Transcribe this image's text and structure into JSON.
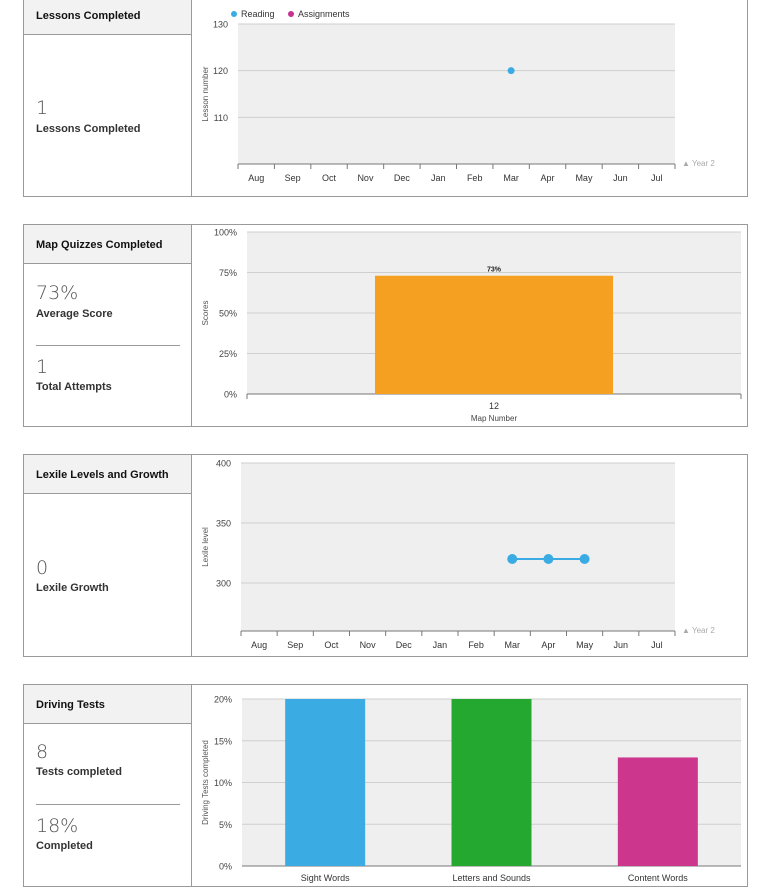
{
  "panels": {
    "lessons": {
      "title": "Lessons Completed",
      "stat_value": "1",
      "stat_label": "Lessons Completed"
    },
    "map_quizzes": {
      "title": "Map Quizzes Completed",
      "avg_value": "73%",
      "avg_label": "Average Score",
      "attempts_value": "1",
      "attempts_label": "Total Attempts"
    },
    "lexile": {
      "title": "Lexile Levels and Growth",
      "stat_value": "0",
      "stat_label": "Lexile Growth"
    },
    "driving": {
      "title": "Driving Tests",
      "tests_value": "8",
      "tests_label": "Tests completed",
      "completed_value": "18%",
      "completed_label": "Completed"
    }
  },
  "colors": {
    "reading": "#3aace3",
    "assignments": "#c7318f",
    "orange": "#f5a020",
    "green": "#25a830",
    "magenta": "#cc368c",
    "plot_bg": "#efefef",
    "grid": "#cfcfcf"
  },
  "chart_data": [
    {
      "type": "scatter",
      "legend": [
        "Reading",
        "Assignments"
      ],
      "ylabel": "Lesson number",
      "ylim": [
        100,
        130
      ],
      "yticks": [
        110,
        120,
        130
      ],
      "x": [
        "Aug",
        "Sep",
        "Oct",
        "Nov",
        "Dec",
        "Jan",
        "Feb",
        "Mar",
        "Apr",
        "May",
        "Jun",
        "Jul"
      ],
      "x_annotation": "▲ Year 2",
      "series": [
        {
          "name": "Reading",
          "points": [
            {
              "x": "Mar",
              "y": 120
            }
          ]
        },
        {
          "name": "Assignments",
          "points": []
        }
      ],
      "grid": true
    },
    {
      "type": "bar",
      "categories": [
        "12"
      ],
      "values": [
        73
      ],
      "data_labels": [
        "73%"
      ],
      "xlabel": "Map Number",
      "ylabel": "Scores",
      "ylim": [
        0,
        100
      ],
      "yticks": [
        "0%",
        "25%",
        "50%",
        "75%",
        "100%"
      ],
      "grid": true
    },
    {
      "type": "line",
      "ylabel": "Lexile level",
      "ylim": [
        260,
        400
      ],
      "yticks": [
        300,
        350,
        400
      ],
      "x": [
        "Aug",
        "Sep",
        "Oct",
        "Nov",
        "Dec",
        "Jan",
        "Feb",
        "Mar",
        "Apr",
        "May",
        "Jun",
        "Jul"
      ],
      "x_annotation": "▲ Year 2",
      "series": [
        {
          "points": [
            {
              "x": "Mar",
              "y": 320
            },
            {
              "x": "Apr",
              "y": 320
            },
            {
              "x": "May",
              "y": 320
            }
          ]
        }
      ],
      "grid": true
    },
    {
      "type": "bar",
      "categories": [
        "Sight Words",
        "Letters and Sounds",
        "Content Words"
      ],
      "values": [
        20,
        20,
        13
      ],
      "ylabel": "Driving Tests completed",
      "ylim": [
        0,
        20
      ],
      "yticks": [
        "0%",
        "5%",
        "10%",
        "15%",
        "20%"
      ],
      "grid": true
    }
  ]
}
